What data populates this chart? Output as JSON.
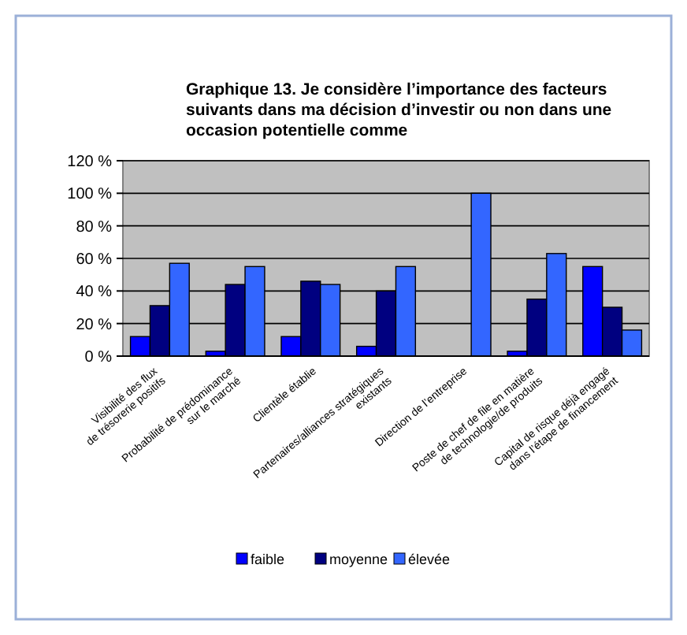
{
  "chart_data": {
    "type": "bar",
    "title": "Graphique 13. Je considère l’importance des facteurs suivants dans ma décision d’investir ou non dans une occasion potentielle comme",
    "categories": [
      "Visibilité des flux\nde trésorerie positifs",
      "Probabilité de prédominance\nsur le marché",
      "Clientèle établie",
      "Partenaires/alliances stratégiques\nexistants",
      "Direction de l’entreprise",
      "Poste de chef de file en matière\nde technologie/de produits",
      "Capital de risque déjà engagé\ndans l’étape de financement"
    ],
    "series": [
      {
        "name": "faible",
        "color": "#0000ff",
        "values": [
          12,
          3,
          12,
          6,
          null,
          3,
          55
        ]
      },
      {
        "name": "moyenne",
        "color": "#000080",
        "values": [
          31,
          44,
          46,
          40,
          null,
          35,
          30
        ]
      },
      {
        "name": "élevée",
        "color": "#3366ff",
        "values": [
          57,
          55,
          44,
          55,
          100,
          63,
          16
        ]
      }
    ],
    "ylim": [
      0,
      120
    ],
    "yticks": [
      {
        "value": 0,
        "label": "0 %"
      },
      {
        "value": 20,
        "label": "20 %"
      },
      {
        "value": 40,
        "label": "40 %"
      },
      {
        "value": 60,
        "label": "60 %"
      },
      {
        "value": 80,
        "label": "80 %"
      },
      {
        "value": 100,
        "label": "100 %"
      },
      {
        "value": 120,
        "label": "120 %"
      }
    ],
    "grid": "y",
    "legend": "bottom"
  }
}
